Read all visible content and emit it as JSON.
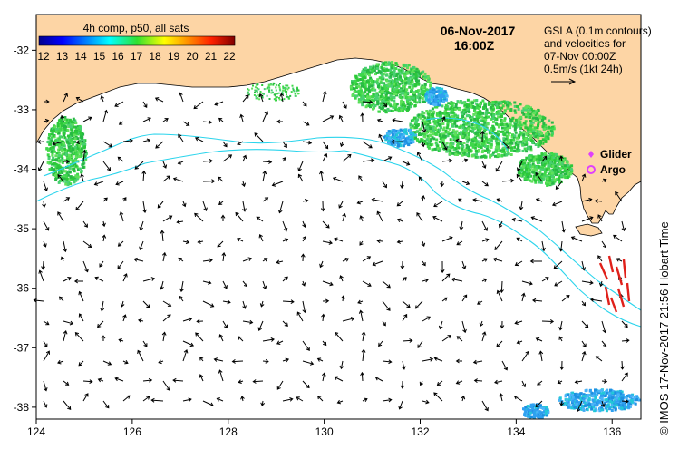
{
  "map": {
    "date": "06-Nov-2017",
    "time": "16:00Z",
    "colorbar_title": "4h comp, p50, all sats",
    "colorbar_ticks": [
      "12",
      "13",
      "14",
      "15",
      "16",
      "17",
      "18",
      "19",
      "20",
      "21",
      "22"
    ],
    "gsla_note": [
      "GSLA (0.1m contours)",
      "and velocities for",
      "07-Nov 00:00Z",
      "0.5m/s (1kt 24h)"
    ],
    "legend": [
      {
        "label": "Glider",
        "color": "#e040fb",
        "marker": "diamond"
      },
      {
        "label": "Argo",
        "color": "#e040fb",
        "marker": "circle"
      }
    ],
    "credit": "© IMOS 17-Nov-2017 21:56 Hobart Time",
    "x_ticks": [
      "124",
      "126",
      "128",
      "130",
      "132",
      "134",
      "136"
    ],
    "y_ticks": [
      "-32",
      "-33",
      "-34",
      "-35",
      "-36",
      "-37",
      "-38"
    ],
    "x_range": [
      124,
      136.6
    ],
    "y_range": [
      -38.2,
      -31.4
    ],
    "colors": {
      "land": "#fdd5a5",
      "sea": "#ffffff",
      "contour": "#2ad4ec",
      "sst_warm": "#2cc83a",
      "sst_cool": "#2fa0f0",
      "velocity_hot": "#e0201a"
    }
  }
}
